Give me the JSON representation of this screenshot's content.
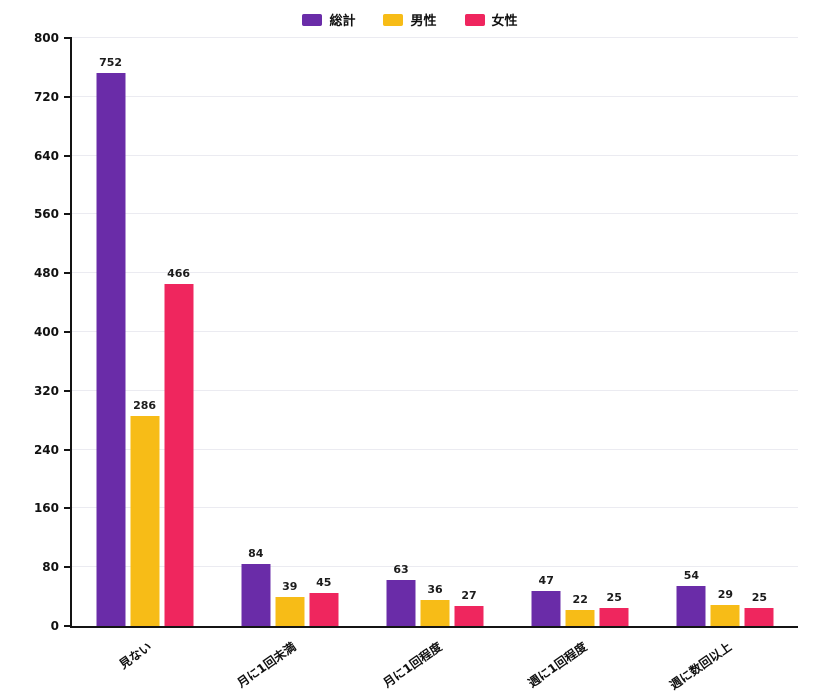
{
  "chart_data": {
    "type": "bar",
    "title": "",
    "xlabel": "",
    "ylabel": "",
    "categories": [
      "見ない",
      "月に1回未満",
      "月に1回程度",
      "週に1回程度",
      "週に数回以上"
    ],
    "series": [
      {
        "name": "総計",
        "color": "#6A2CA8",
        "values": [
          752,
          84,
          63,
          47,
          54
        ]
      },
      {
        "name": "男性",
        "color": "#F7BC17",
        "values": [
          286,
          39,
          36,
          22,
          29
        ]
      },
      {
        "name": "女性",
        "color": "#EF265E",
        "values": [
          466,
          45,
          27,
          25,
          25
        ]
      }
    ],
    "ylim": [
      0,
      800
    ],
    "yticks": [
      0,
      80,
      160,
      240,
      320,
      400,
      480,
      560,
      640,
      720,
      800
    ],
    "grid": true,
    "legend_position": "top-center",
    "background_color": "#ffffff",
    "axis_color": "#141414",
    "grid_color": "#ebebf1"
  }
}
